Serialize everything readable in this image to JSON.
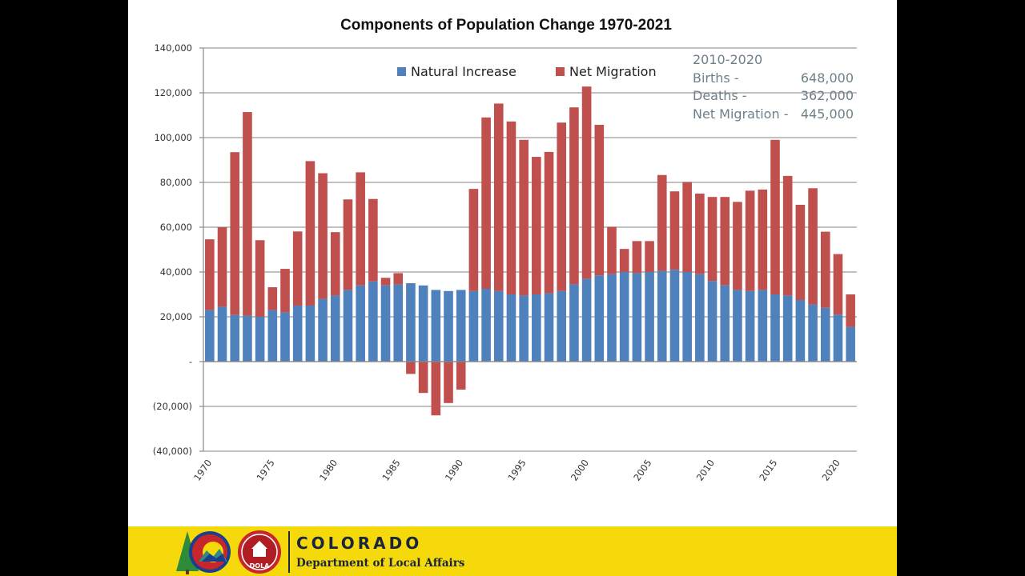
{
  "colors": {
    "natural_increase": "#4f81bd",
    "net_migration": "#c0504d",
    "gridline": "#9a9a9a",
    "footer_bg": "#f5d90a",
    "footer_text": "#1a2640"
  },
  "chart_data": {
    "type": "bar",
    "stacked": true,
    "title": "Components of Population Change 1970-2021",
    "xlabel": "",
    "ylabel": "",
    "ylim": [
      -40000,
      140000
    ],
    "y_ticks": [
      140000,
      120000,
      100000,
      80000,
      60000,
      40000,
      20000,
      0,
      -20000,
      -40000
    ],
    "y_tick_labels": [
      "140,000",
      "120,000",
      "100,000",
      "80,000",
      "60,000",
      "40,000",
      "20,000",
      "-",
      "(20,000)",
      "(40,000)"
    ],
    "x_tick_labels": [
      "1970",
      "1975",
      "1980",
      "1985",
      "1990",
      "1995",
      "2000",
      "2005",
      "2010",
      "2015",
      "2020"
    ],
    "grid": true,
    "legend_position": "top-center",
    "categories": [
      1970,
      1971,
      1972,
      1973,
      1974,
      1975,
      1976,
      1977,
      1978,
      1979,
      1980,
      1981,
      1982,
      1983,
      1984,
      1985,
      1986,
      1987,
      1988,
      1989,
      1990,
      1991,
      1992,
      1993,
      1994,
      1995,
      1996,
      1997,
      1998,
      1999,
      2000,
      2001,
      2002,
      2003,
      2004,
      2005,
      2006,
      2007,
      2008,
      2009,
      2010,
      2011,
      2012,
      2013,
      2014,
      2015,
      2016,
      2017,
      2018,
      2019,
      2020,
      2021
    ],
    "series": [
      {
        "name": "Natural Increase",
        "values": [
          23000,
          24500,
          20800,
          20500,
          20000,
          23000,
          22000,
          25000,
          25000,
          28000,
          29500,
          32000,
          34000,
          35800,
          34000,
          34500,
          35000,
          34000,
          32000,
          31500,
          32000,
          31500,
          32500,
          31500,
          30000,
          29500,
          30000,
          30500,
          31500,
          34500,
          37000,
          38500,
          39000,
          40000,
          39500,
          40000,
          40500,
          41000,
          40000,
          39000,
          36000,
          34000,
          32000,
          31500,
          32000,
          30000,
          29500,
          27500,
          25500,
          24000,
          21000,
          15500
        ]
      },
      {
        "name": "Net Migration",
        "values": [
          31600,
          35500,
          72700,
          90900,
          34200,
          10200,
          19400,
          33100,
          64500,
          56100,
          28300,
          40400,
          50500,
          36800,
          3400,
          5000,
          -5500,
          -14000,
          -24000,
          -18500,
          -12500,
          45600,
          76500,
          83700,
          77200,
          69500,
          61400,
          63100,
          75200,
          79000,
          85800,
          67200,
          21200,
          10300,
          14300,
          13800,
          42800,
          35000,
          40200,
          36000,
          37500,
          39500,
          39300,
          44800,
          44800,
          69000,
          53400,
          42500,
          51900,
          34000,
          27000,
          14500
        ]
      }
    ]
  },
  "note": {
    "heading": "2010-2020",
    "rows": [
      {
        "label": "Births -",
        "value": "648,000"
      },
      {
        "label": "Deaths -",
        "value": "362,000"
      },
      {
        "label": "Net Migration -",
        "value": "445,000"
      }
    ]
  },
  "footer": {
    "org": "COLORADO",
    "dept": "Department of Local Affairs",
    "badge": "DOLA"
  }
}
